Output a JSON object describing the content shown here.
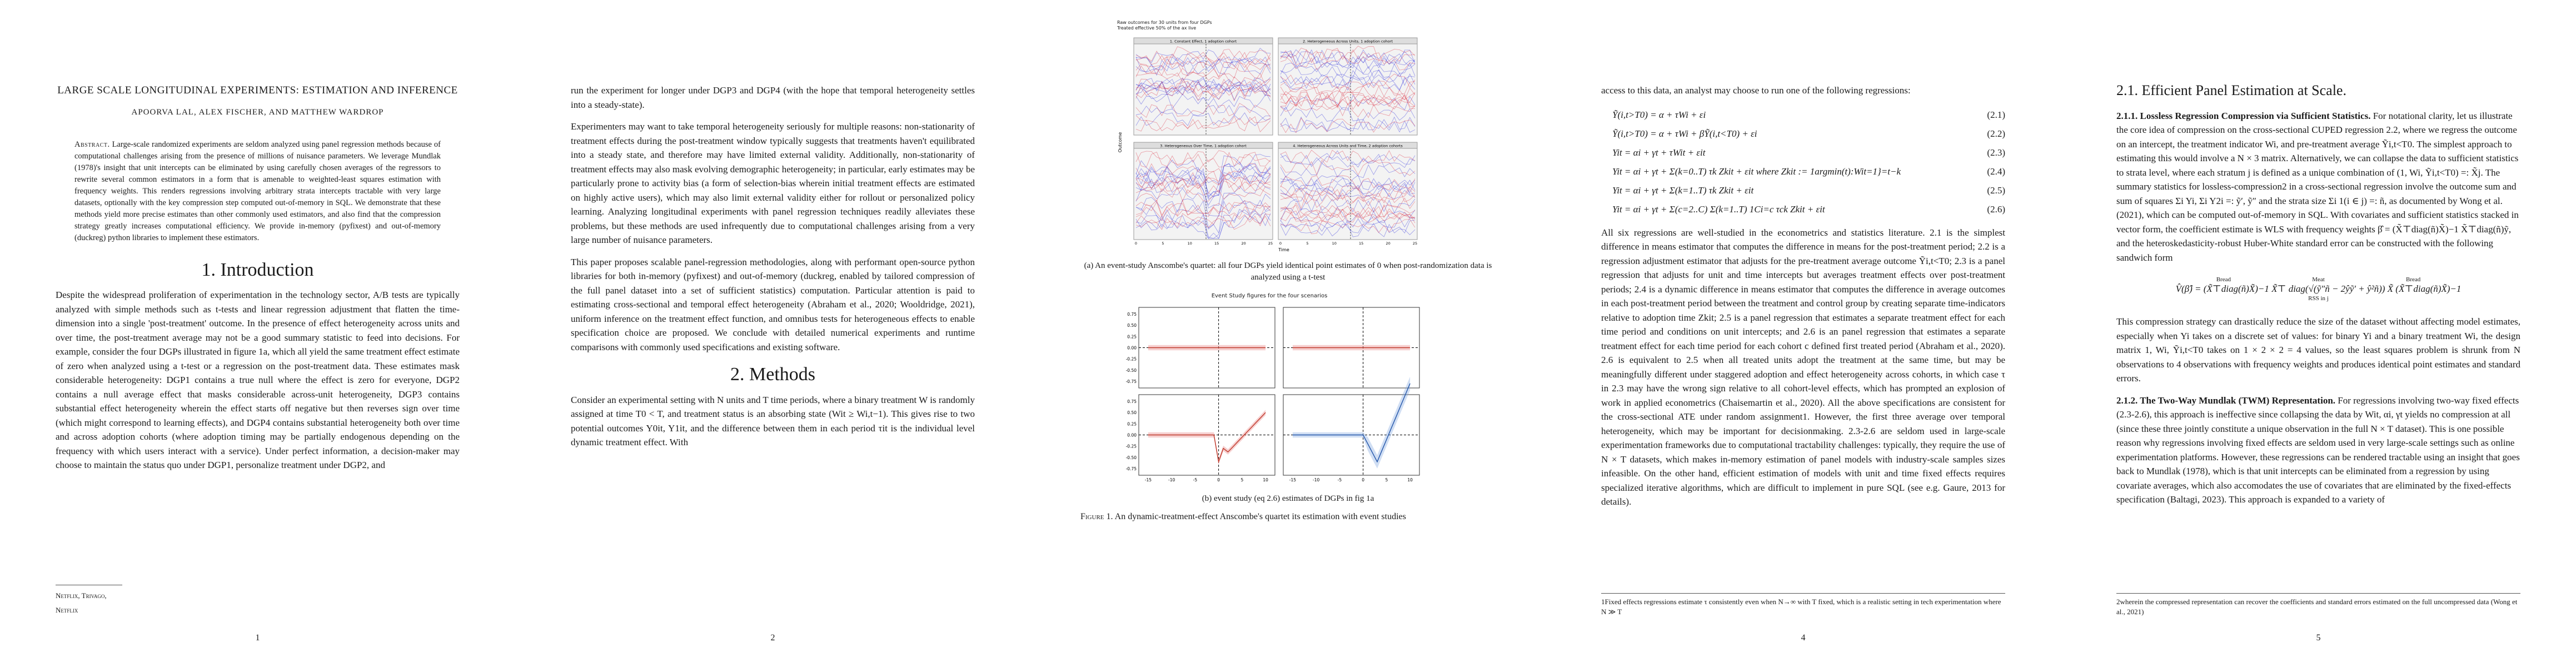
{
  "page1": {
    "title": "LARGE SCALE LONGITUDINAL EXPERIMENTS: ESTIMATION AND INFERENCE",
    "authors": "APOORVA LAL, ALEX FISCHER, AND MATTHEW WARDROP",
    "abstract_label": "Abstract.",
    "abstract": "Large-scale randomized experiments are seldom analyzed using panel regression methods because of computational challenges arising from the presence of millions of nuisance parameters. We leverage Mundlak (1978)'s insight that unit intercepts can be eliminated by using carefully chosen averages of the regressors to rewrite several common estimators in a form that is amenable to weighted-least squares estimation with frequency weights. This renders regressions involving arbitrary strata intercepts tractable with very large datasets, optionally with the key compression step computed out-of-memory in SQL. We demonstrate that these methods yield more precise estimates than other commonly used estimators, and also find that the compression strategy greatly increases computational efficiency. We provide in-memory (pyfixest) and out-of-memory (duckreg) python libraries to implement these estimators.",
    "section": "1.  Introduction",
    "intro": "Despite the widespread proliferation of experimentation in the technology sector, A/B tests are typically analyzed with simple methods such as t-tests and linear regression adjustment that flatten the time-dimension into a single 'post-treatment' outcome. In the presence of effect heterogeneity across units and over time, the post-treatment average may not be a good summary statistic to feed into decisions. For example, consider the four DGPs illustrated in figure 1a, which all yield the same treatment effect estimate of zero when analyzed using a t-test or a regression on the post-treatment data. These estimates mask considerable heterogeneity: DGP1 contains a true null where the effect is zero for everyone, DGP2 contains a null average effect that masks considerable across-unit heterogeneity, DGP3 contains substantial effect heterogeneity wherein the effect starts off negative but then reverses sign over time (which might correspond to learning effects), and DGP4 contains substantial heterogeneity both over time and across adoption cohorts (where adoption timing may be partially endogenous depending on the frequency with which users interact with a service). Under perfect information, a decision-maker may choose to maintain the status quo under DGP1, personalize treatment under DGP2, and",
    "affiliation": "Netflix, Trivago, Netflix",
    "number": "1"
  },
  "page2": {
    "para1": "run the experiment for longer under DGP3 and DGP4 (with the hope that temporal heterogeneity settles into a steady-state).",
    "para2": "Experimenters may want to take temporal heterogeneity seriously for multiple reasons: non-stationarity of treatment effects during the post-treatment window typically suggests that treatments haven't equilibrated into a steady state, and therefore may have limited external validity. Additionally, non-stationarity of treatment effects may also mask evolving demographic heterogeneity; in particular, early estimates may be particularly prone to activity bias (a form of selection-bias wherein initial treatment effects are estimated on highly active users), which may also limit external validity either for rollout or personalized policy learning. Analyzing longitudinal experiments with panel regression techniques readily alleviates these problems, but these methods are used infrequently due to computational challenges arising from a very large number of nuisance parameters.",
    "para3": "This paper proposes scalable panel-regression methodologies, along with performant open-source python libraries for both in-memory (pyfixest) and out-of-memory (duckreg, enabled by tailored compression of the full panel dataset into a set of sufficient statistics) computation. Particular attention is paid to estimating cross-sectional and temporal effect heterogeneity (Abraham et al., 2020; Wooldridge, 2021), uniform inference on the treatment effect function, and omnibus tests for heterogeneous effects to enable specification choice are proposed. We conclude with detailed numerical experiments and runtime comparisons with commonly used specifications and existing software.",
    "section": "2.  Methods",
    "methods": "Consider an experimental setting with N units and T time periods, where a binary treatment W is randomly assigned at time T0 < T, and treatment status is an absorbing state (Wit ≥ Wi,t−1). This gives rise to two potential outcomes Y0it, Y1it, and the difference between them in each period τit is the individual level dynamic treatment effect. With",
    "number": "2"
  },
  "page3": {
    "figa_header": "Raw outcomes for 30 units from four DGPs",
    "figa_subheader": "Treated effective 50% of the ax live",
    "panels": [
      "1. Constant Effect, 1 adoption cohort",
      "2. Heterogeneous Across Units, 1 adoption cohort",
      "3. Heterogeneous Over Time, 1 adoption cohort",
      "4. Heterogeneous Across Units and Time, 2 adoption cohorts"
    ],
    "figa_ylabel": "Outcome",
    "figa_xlabel": "Time",
    "figa_xticks": [
      "0",
      "5",
      "10",
      "15",
      "20",
      "25"
    ],
    "figa_caption": "(a) An event-study Anscombe's quartet: all four DGPs yield identical point estimates of 0 when post-randomization data is analyzed using a t-test",
    "figb_title": "Event Study figures for the four scenarios",
    "figb_yticks": [
      "0.75",
      "0.50",
      "0.25",
      "0.00",
      "-0.25",
      "-0.50",
      "-0.75"
    ],
    "figb_xticks": [
      "-15",
      "-10",
      "-5",
      "0",
      "5",
      "10"
    ],
    "figb_caption": "(b) event study (eq 2.6) estimates of DGPs in fig 1a",
    "figure_label": "Figure 1.",
    "figure_caption": "An dynamic-treatment-effect Anscombe's quartet its estimation with event studies",
    "number": ""
  },
  "page4": {
    "intro": "access to this data, an analyst may choose to run one of the following regressions:",
    "equations": [
      {
        "eq": "Ỹ(i,t>T0) = α + τWi + εi",
        "num": "(2.1)"
      },
      {
        "eq": "Ỹ(i,t>T0) = α + τWi + βỸ(i,t<T0) + εi",
        "num": "(2.2)"
      },
      {
        "eq": "Yit = αi + γt + τWit + εit",
        "num": "(2.3)"
      },
      {
        "eq": "Yit = αi + γt + Σ(k=0..T) τk Zkit + εit   where Zkit := 1argmin(t):Wit=1}=t−k",
        "num": "(2.4)"
      },
      {
        "eq": "Yit = αi + γt + Σ(k=1..T) τk Zkit + εit",
        "num": "(2.5)"
      },
      {
        "eq": "Yit = αi + γt + Σ(c=2..C) Σ(k=1..T) 1Ci=c τck Zkit + εit",
        "num": "(2.6)"
      }
    ],
    "body": "All six regressions are well-studied in the econometrics and statistics literature. 2.1 is the simplest difference in means estimator that computes the difference in means for the post-treatment period; 2.2 is a regression adjustment estimator that adjusts for the pre-treatment average outcome Ỹi,t<T0; 2.3 is a panel regression that adjusts for unit and time intercepts but averages treatment effects over post-treatment periods; 2.4 is a dynamic difference in means estimator that computes the difference in average outcomes in each post-treatment period between the treatment and control group by creating separate time-indicators relative to adoption time Zkit; 2.5 is a panel regression that estimates a separate treatment effect for each time period and conditions on unit intercepts; and 2.6 is an panel regression that estimates a separate treatment effect for each time period for each cohort c defined first treated period (Abraham et al., 2020). 2.6 is equivalent to 2.5 when all treated units adopt the treatment at the same time, but may be meaningfully different under staggered adoption and effect heterogeneity across cohorts, in which case τ in 2.3 may have the wrong sign relative to all cohort-level effects, which has prompted an explosion of work in applied econometrics (Chaisemartin et al., 2020). All the above specifications are consistent for the cross-sectional ATE under random assignment1. However, the first three average over temporal heterogeneity, which may be important for decisionmaking. 2.3-2.6 are seldom used in large-scale experimentation frameworks due to computational tractability challenges: typically, they require the use of N × T datasets, which makes in-memory estimation of panel models with industry-scale samples sizes infeasible. On the other hand, efficient estimation of models with unit and time fixed effects requires specialized iterative algorithms, which are difficult to implement in pure SQL (see e.g. Gaure, 2013 for details).",
    "footnote": "1Fixed effects regressions estimate τ consistently even when N→∞ with T fixed, which is a realistic setting in tech experimentation where N ≫ T",
    "number": "4"
  },
  "page5": {
    "section": "2.1.  Efficient Panel Estimation at Scale.",
    "sub1_title": "2.1.1.  Lossless Regression Compression via Sufficient Statistics.",
    "sub1_body": "For notational clarity, let us illustrate the core idea of compression on the cross-sectional CUPED regression 2.2, where we regress the outcome on an intercept, the treatment indicator Wi, and pre-treatment average Ỹi,t<T0. The simplest approach to estimating this would involve a N × 3 matrix. Alternatively, we can collapse the data to sufficient statistics to strata level, where each stratum j is defined as a unique combination of (1, Wi, Ỹi,t<T0) =: X̃j. The summary statistics for lossless-compression2 in a cross-sectional regression involve the outcome sum and sum of squares Σi Yi, Σi Y2i =: ỹ′, ỹ″ and the strata size Σi 1(i ∈ j) =: ñ, as documented by Wong et al. (2021), which can be computed out-of-memory in SQL. With covariates and sufficient statistics stacked in vector form, the coefficient estimate is WLS with frequency weights β̂ = (X̃⊤diag(ñ)X̃)−1 X̃⊤diag(ñ)ỹ, and the heteroskedasticity-robust Huber-White standard error can be constructed with the following sandwich form",
    "sandwich": "V̂(β̂) = (X̃⊤diag(ñ)X̃)−1 X̃⊤ diag(√(ỹ″ñ − 2ŷỹ′ + ŷ²ñ)) X̃ (X̃⊤diag(ñ)X̃)−1",
    "sandwich_bread": "Bread",
    "sandwich_meat": "Meat",
    "sandwich_rss": "RSS in j",
    "sub1_after": "This compression strategy can drastically reduce the size of the dataset without affecting model estimates, especially when Yi takes on a discrete set of values: for binary Yi and a binary treatment Wi, the design matrix 1, Wi, Ỹi,t<T0 takes on 1 × 2 × 2 = 4 values, so the least squares problem is shrunk from N observations to 4 observations with frequency weights and produces identical point estimates and standard errors.",
    "sub2_title": "2.1.2.  The Two-Way Mundlak (TWM) Representation.",
    "sub2_body": "For regressions involving two-way fixed effects (2.3-2.6), this approach is ineffective since collapsing the data by Wit, αi, γt yields no compression at all (since these three jointly constitute a unique observation in the full N × T dataset). This is one possible reason why regressions involving fixed effects are seldom used in very large-scale settings such as online experimentation platforms. However, these regressions can be rendered tractable using an insight that goes back to Mundlak (1978), which is that unit intercepts can be eliminated from a regression by using covariate averages, which also accomodates the use of covariates that are eliminated by the fixed-effects specification (Baltagi, 2023). This approach is expanded to a variety of",
    "footnote": "2wherein the compressed representation can recover the coefficients and standard errors estimated on the full uncompressed data (Wong et al., 2021)",
    "number": "5"
  }
}
